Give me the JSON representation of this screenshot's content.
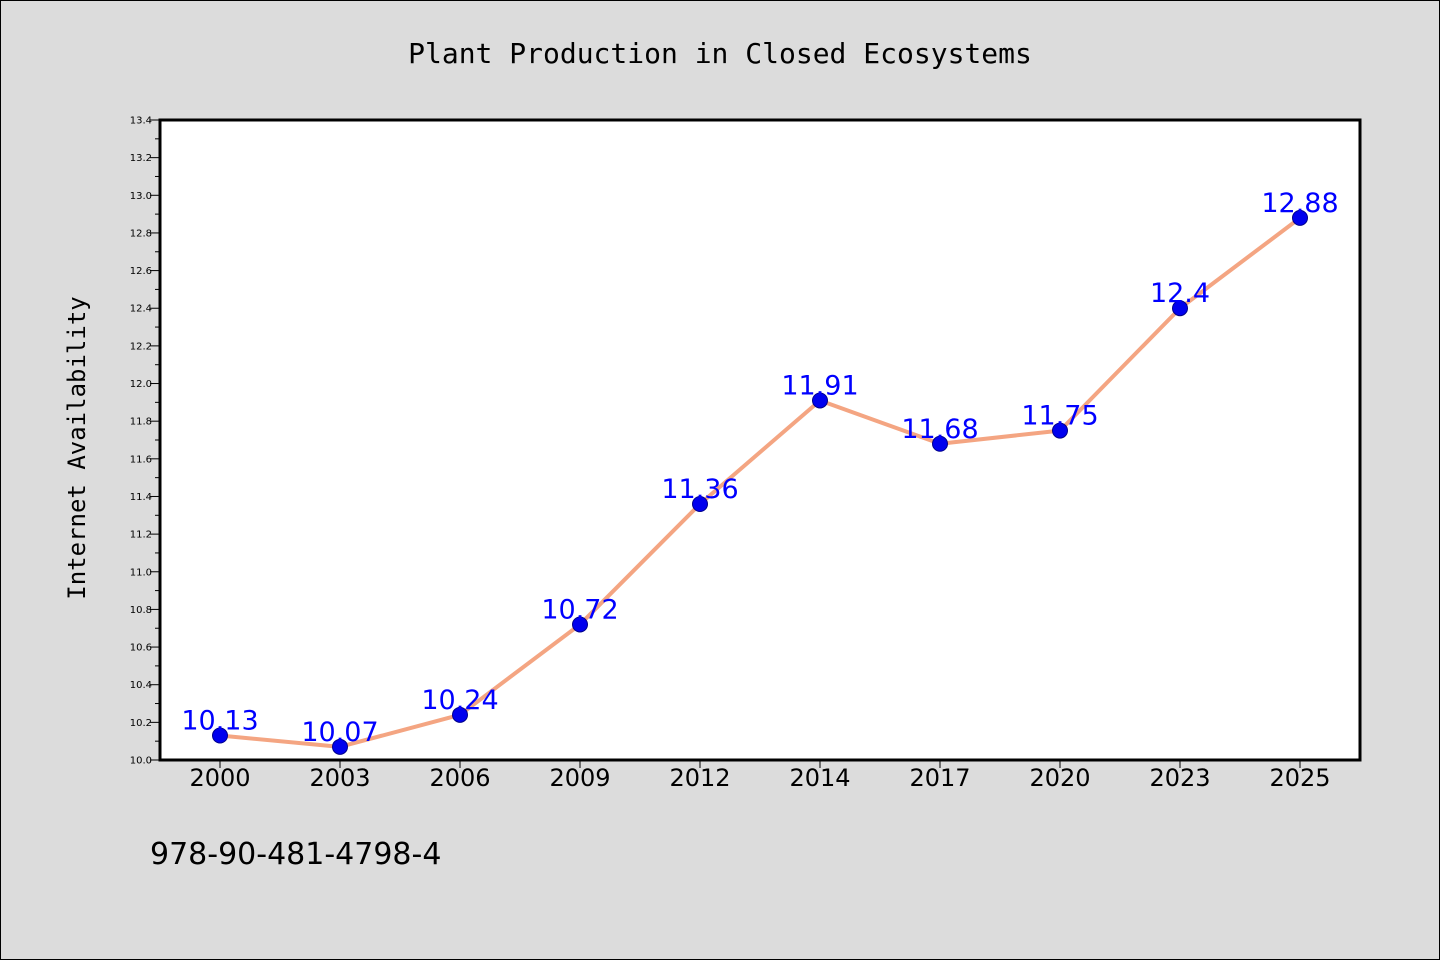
{
  "chart_data": {
    "type": "line",
    "title": "Plant Production in Closed Ecosystems",
    "xlabel": "",
    "ylabel": "Internet Availability",
    "categories": [
      "2000",
      "2003",
      "2006",
      "2009",
      "2012",
      "2014",
      "2017",
      "2020",
      "2023",
      "2025"
    ],
    "values": [
      10.13,
      10.07,
      10.24,
      10.72,
      11.36,
      11.91,
      11.68,
      11.75,
      12.4,
      12.88
    ],
    "data_labels": [
      "10.13",
      "10.07",
      "10.24",
      "10.72",
      "11.36",
      "11.91",
      "11.68",
      "11.75",
      "12.4",
      "12.88"
    ],
    "ylim": [
      10.0,
      13.4
    ],
    "yticks": [
      "10.0",
      "10.2",
      "10.4",
      "10.6",
      "10.8",
      "11.0",
      "11.2",
      "11.4",
      "11.6",
      "11.8",
      "12.0",
      "12.2",
      "12.4",
      "12.6",
      "12.8",
      "13.0",
      "13.2",
      "13.4"
    ],
    "grid": false,
    "legend": "none",
    "colors": {
      "line": "#f4a582",
      "marker": "#0000ee",
      "label": "#0000ff",
      "background": "#dcdcdc",
      "plot_background": "#ffffff"
    }
  },
  "footer": {
    "isbn": "978-90-481-4798-4"
  }
}
